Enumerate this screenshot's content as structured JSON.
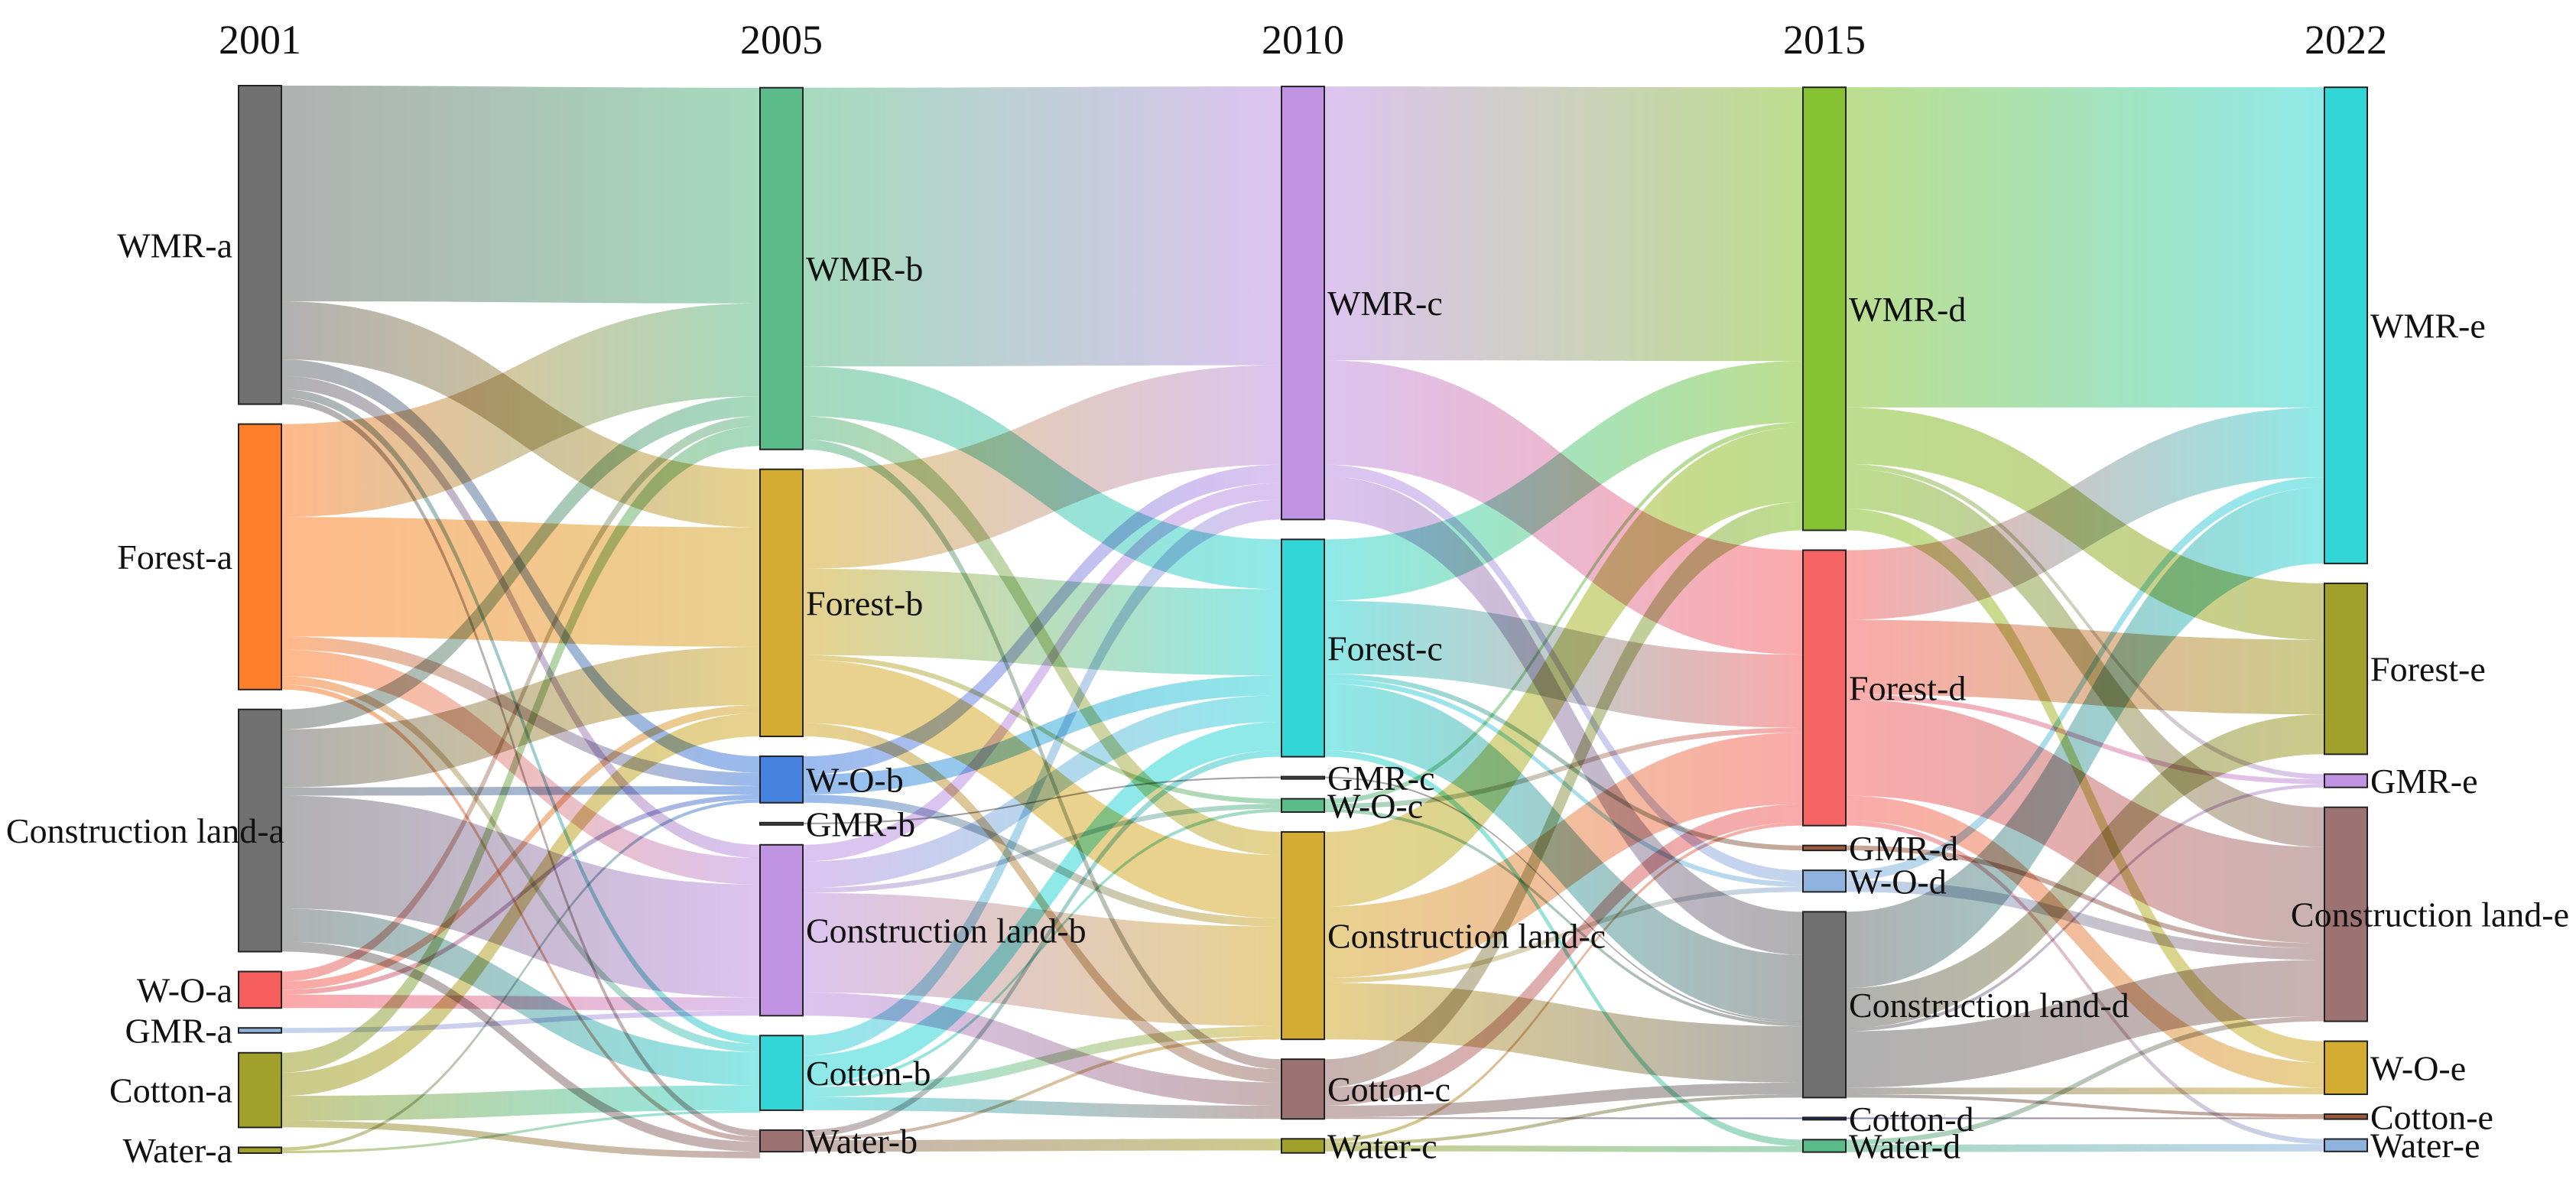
{
  "chart_data": {
    "type": "sankey",
    "title": "",
    "columns": [
      {
        "year": "2001",
        "nodes": [
          {
            "id": "WMR-a",
            "label": "WMR-a",
            "value": 19.2,
            "color": "#707070"
          },
          {
            "id": "Forest-a",
            "label": "Forest-a",
            "value": 16.0,
            "color": "#ff7f2a"
          },
          {
            "id": "Construction land-a",
            "label": "Construction land-a",
            "value": 14.6,
            "color": "#707070"
          },
          {
            "id": "W-O-a",
            "label": "W-O-a",
            "value": 2.2,
            "color": "#f75f5f"
          },
          {
            "id": "GMR-a",
            "label": "GMR-a",
            "value": 0.3,
            "color": "#8fb2de"
          },
          {
            "id": "Cotton-a",
            "label": "Cotton-a",
            "value": 4.5,
            "color": "#a0a02a"
          },
          {
            "id": "Water-a",
            "label": "Water-a",
            "value": 0.35,
            "color": "#a0a02a"
          }
        ]
      },
      {
        "year": "2005",
        "nodes": [
          {
            "id": "WMR-b",
            "label": "WMR-b",
            "value": 21.8,
            "color": "#5bbb89"
          },
          {
            "id": "Forest-b",
            "label": "Forest-b",
            "value": 16.1,
            "color": "#d4ac31"
          },
          {
            "id": "W-O-b",
            "label": "W-O-b",
            "value": 2.8,
            "color": "#4682e0"
          },
          {
            "id": "GMR-b",
            "label": "GMR-b",
            "value": 0.1,
            "color": "#555555"
          },
          {
            "id": "Construction land-b",
            "label": "Construction land-b",
            "value": 10.3,
            "color": "#c093e3"
          },
          {
            "id": "Cotton-b",
            "label": "Cotton-b",
            "value": 4.5,
            "color": "#33d6d6"
          },
          {
            "id": "Water-b",
            "label": "Water-b",
            "value": 1.3,
            "color": "#9c7272"
          }
        ]
      },
      {
        "year": "2010",
        "nodes": [
          {
            "id": "WMR-c",
            "label": "WMR-c",
            "value": 26.1,
            "color": "#c093e3"
          },
          {
            "id": "Forest-c",
            "label": "Forest-c",
            "value": 13.1,
            "color": "#33d6d6"
          },
          {
            "id": "GMR-c",
            "label": "GMR-c",
            "value": 0.1,
            "color": "#555555"
          },
          {
            "id": "W-O-c",
            "label": "W-O-c",
            "value": 0.8,
            "color": "#5bbb89"
          },
          {
            "id": "Construction land-c",
            "label": "Construction land-c",
            "value": 12.5,
            "color": "#d4ac31"
          },
          {
            "id": "Cotton-c",
            "label": "Cotton-c",
            "value": 3.6,
            "color": "#9c7272"
          },
          {
            "id": "Water-c",
            "label": "Water-c",
            "value": 0.85,
            "color": "#a0a02a"
          }
        ]
      },
      {
        "year": "2015",
        "nodes": [
          {
            "id": "WMR-d",
            "label": "WMR-d",
            "value": 26.7,
            "color": "#86c231"
          },
          {
            "id": "Forest-d",
            "label": "Forest-d",
            "value": 16.6,
            "color": "#f76464"
          },
          {
            "id": "GMR-d",
            "label": "GMR-d",
            "value": 0.3,
            "color": "#9c5a3c"
          },
          {
            "id": "W-O-d",
            "label": "W-O-d",
            "value": 1.3,
            "color": "#8fb2de"
          },
          {
            "id": "Construction land-d",
            "label": "Construction land-d",
            "value": 11.2,
            "color": "#707070"
          },
          {
            "id": "Cotton-d",
            "label": "Cotton-d",
            "value": 0.1,
            "color": "#1f2a6e"
          },
          {
            "id": "Water-d",
            "label": "Water-d",
            "value": 0.75,
            "color": "#5bbb89"
          }
        ]
      },
      {
        "year": "2022",
        "nodes": [
          {
            "id": "WMR-e",
            "label": "WMR-e",
            "value": 28.7,
            "color": "#33d6d6"
          },
          {
            "id": "Forest-e",
            "label": "Forest-e",
            "value": 10.3,
            "color": "#a0a02a"
          },
          {
            "id": "GMR-e",
            "label": "GMR-e",
            "value": 0.8,
            "color": "#c093e3"
          },
          {
            "id": "Construction land-e",
            "label": "Construction land-e",
            "value": 12.9,
            "color": "#9c7272"
          },
          {
            "id": "W-O-e",
            "label": "W-O-e",
            "value": 3.2,
            "color": "#d4ac31"
          },
          {
            "id": "Cotton-e",
            "label": "Cotton-e",
            "value": 0.3,
            "color": "#9c5a3c"
          },
          {
            "id": "Water-e",
            "label": "Water-e",
            "value": 0.75,
            "color": "#8fb2de"
          }
        ]
      }
    ],
    "links": [
      {
        "source": "WMR-a",
        "target": "WMR-b",
        "value": 13.0
      },
      {
        "source": "WMR-a",
        "target": "Forest-b",
        "value": 3.5
      },
      {
        "source": "WMR-a",
        "target": "W-O-b",
        "value": 1.0
      },
      {
        "source": "WMR-a",
        "target": "Construction land-b",
        "value": 0.8
      },
      {
        "source": "WMR-a",
        "target": "Cotton-b",
        "value": 0.5
      },
      {
        "source": "WMR-a",
        "target": "Water-b",
        "value": 0.4
      },
      {
        "source": "Forest-a",
        "target": "WMR-b",
        "value": 5.6
      },
      {
        "source": "Forest-a",
        "target": "Forest-b",
        "value": 7.2
      },
      {
        "source": "Forest-a",
        "target": "W-O-b",
        "value": 0.8
      },
      {
        "source": "Forest-a",
        "target": "Construction land-b",
        "value": 1.6
      },
      {
        "source": "Forest-a",
        "target": "Cotton-b",
        "value": 0.5
      },
      {
        "source": "Forest-a",
        "target": "Water-b",
        "value": 0.3
      },
      {
        "source": "Construction land-a",
        "target": "WMR-b",
        "value": 1.2
      },
      {
        "source": "Construction land-a",
        "target": "Forest-b",
        "value": 3.5
      },
      {
        "source": "Construction land-a",
        "target": "W-O-b",
        "value": 0.5
      },
      {
        "source": "Construction land-a",
        "target": "Construction land-b",
        "value": 6.8
      },
      {
        "source": "Construction land-a",
        "target": "Cotton-b",
        "value": 2.0
      },
      {
        "source": "Construction land-a",
        "target": "Water-b",
        "value": 0.6
      },
      {
        "source": "W-O-a",
        "target": "WMR-b",
        "value": 0.6
      },
      {
        "source": "W-O-a",
        "target": "Forest-b",
        "value": 0.5
      },
      {
        "source": "W-O-a",
        "target": "W-O-b",
        "value": 0.3
      },
      {
        "source": "W-O-a",
        "target": "Construction land-b",
        "value": 0.8
      },
      {
        "source": "GMR-a",
        "target": "Construction land-b",
        "value": 0.3
      },
      {
        "source": "Cotton-a",
        "target": "WMR-b",
        "value": 1.2
      },
      {
        "source": "Cotton-a",
        "target": "Forest-b",
        "value": 1.4
      },
      {
        "source": "Cotton-a",
        "target": "Cotton-b",
        "value": 1.5
      },
      {
        "source": "Cotton-a",
        "target": "Water-b",
        "value": 0.4
      },
      {
        "source": "Water-a",
        "target": "W-O-b",
        "value": 0.2
      },
      {
        "source": "Water-a",
        "target": "Cotton-b",
        "value": 0.15
      },
      {
        "source": "WMR-b",
        "target": "WMR-c",
        "value": 16.8
      },
      {
        "source": "WMR-b",
        "target": "Forest-c",
        "value": 3.0
      },
      {
        "source": "WMR-b",
        "target": "Construction land-c",
        "value": 1.4
      },
      {
        "source": "WMR-b",
        "target": "Cotton-c",
        "value": 0.6
      },
      {
        "source": "Forest-b",
        "target": "WMR-c",
        "value": 6.0
      },
      {
        "source": "Forest-b",
        "target": "Forest-c",
        "value": 5.2
      },
      {
        "source": "Forest-b",
        "target": "W-O-c",
        "value": 0.3
      },
      {
        "source": "Forest-b",
        "target": "Construction land-c",
        "value": 3.8
      },
      {
        "source": "Forest-b",
        "target": "Cotton-c",
        "value": 0.8
      },
      {
        "source": "W-O-b",
        "target": "WMR-c",
        "value": 1.1
      },
      {
        "source": "W-O-b",
        "target": "Forest-c",
        "value": 1.2
      },
      {
        "source": "W-O-b",
        "target": "Construction land-c",
        "value": 0.5
      },
      {
        "source": "GMR-b",
        "target": "GMR-c",
        "value": 0.1
      },
      {
        "source": "Construction land-b",
        "target": "WMR-c",
        "value": 1.0
      },
      {
        "source": "Construction land-b",
        "target": "Forest-c",
        "value": 1.6
      },
      {
        "source": "Construction land-b",
        "target": "W-O-c",
        "value": 0.3
      },
      {
        "source": "Construction land-b",
        "target": "Construction land-c",
        "value": 6.0
      },
      {
        "source": "Construction land-b",
        "target": "Cotton-c",
        "value": 1.4
      },
      {
        "source": "Cotton-b",
        "target": "WMR-c",
        "value": 1.2
      },
      {
        "source": "Cotton-b",
        "target": "Forest-c",
        "value": 1.7
      },
      {
        "source": "Cotton-b",
        "target": "W-O-c",
        "value": 0.2
      },
      {
        "source": "Cotton-b",
        "target": "Construction land-c",
        "value": 0.6
      },
      {
        "source": "Cotton-b",
        "target": "Cotton-c",
        "value": 0.8
      },
      {
        "source": "Water-b",
        "target": "Forest-c",
        "value": 0.4
      },
      {
        "source": "Water-b",
        "target": "Construction land-c",
        "value": 0.2
      },
      {
        "source": "Water-b",
        "target": "Water-c",
        "value": 0.7
      },
      {
        "source": "WMR-c",
        "target": "WMR-d",
        "value": 16.5
      },
      {
        "source": "WMR-c",
        "target": "Forest-d",
        "value": 6.3
      },
      {
        "source": "WMR-c",
        "target": "W-O-d",
        "value": 0.7
      },
      {
        "source": "WMR-c",
        "target": "Construction land-d",
        "value": 2.6
      },
      {
        "source": "Forest-c",
        "target": "WMR-d",
        "value": 3.7
      },
      {
        "source": "Forest-c",
        "target": "Forest-d",
        "value": 4.4
      },
      {
        "source": "Forest-c",
        "target": "GMR-d",
        "value": 0.3
      },
      {
        "source": "Forest-c",
        "target": "W-O-d",
        "value": 0.3
      },
      {
        "source": "Forest-c",
        "target": "Construction land-d",
        "value": 4.0
      },
      {
        "source": "Forest-c",
        "target": "Water-d",
        "value": 0.4
      },
      {
        "source": "GMR-c",
        "target": "Construction land-d",
        "value": 0.1
      },
      {
        "source": "W-O-c",
        "target": "WMR-d",
        "value": 0.3
      },
      {
        "source": "W-O-c",
        "target": "Forest-d",
        "value": 0.3
      },
      {
        "source": "W-O-c",
        "target": "Construction land-d",
        "value": 0.2
      },
      {
        "source": "Construction land-c",
        "target": "WMR-d",
        "value": 4.5
      },
      {
        "source": "Construction land-c",
        "target": "Forest-d",
        "value": 4.3
      },
      {
        "source": "Construction land-c",
        "target": "W-O-d",
        "value": 0.3
      },
      {
        "source": "Construction land-c",
        "target": "Construction land-d",
        "value": 3.4
      },
      {
        "source": "Cotton-c",
        "target": "WMR-d",
        "value": 1.7
      },
      {
        "source": "Cotton-c",
        "target": "Forest-d",
        "value": 1.1
      },
      {
        "source": "Cotton-c",
        "target": "Construction land-d",
        "value": 0.7
      },
      {
        "source": "Cotton-c",
        "target": "Cotton-d",
        "value": 0.1
      },
      {
        "source": "Water-c",
        "target": "Forest-d",
        "value": 0.2
      },
      {
        "source": "Water-c",
        "target": "Construction land-d",
        "value": 0.2
      },
      {
        "source": "Water-c",
        "target": "Water-d",
        "value": 0.35
      },
      {
        "source": "WMR-d",
        "target": "WMR-e",
        "value": 19.3
      },
      {
        "source": "WMR-d",
        "target": "Forest-e",
        "value": 3.4
      },
      {
        "source": "WMR-d",
        "target": "GMR-e",
        "value": 0.3
      },
      {
        "source": "WMR-d",
        "target": "Construction land-e",
        "value": 2.4
      },
      {
        "source": "WMR-d",
        "target": "W-O-e",
        "value": 1.3
      },
      {
        "source": "Forest-d",
        "target": "WMR-e",
        "value": 4.2
      },
      {
        "source": "Forest-d",
        "target": "Forest-e",
        "value": 4.5
      },
      {
        "source": "Forest-d",
        "target": "GMR-e",
        "value": 0.3
      },
      {
        "source": "Forest-d",
        "target": "Construction land-e",
        "value": 5.8
      },
      {
        "source": "Forest-d",
        "target": "W-O-e",
        "value": 1.5
      },
      {
        "source": "Forest-d",
        "target": "Water-e",
        "value": 0.3
      },
      {
        "source": "GMR-d",
        "target": "Construction land-e",
        "value": 0.3
      },
      {
        "source": "W-O-d",
        "target": "WMR-e",
        "value": 0.6
      },
      {
        "source": "W-O-d",
        "target": "Construction land-e",
        "value": 0.7
      },
      {
        "source": "Construction land-d",
        "target": "WMR-e",
        "value": 4.6
      },
      {
        "source": "Construction land-d",
        "target": "Forest-e",
        "value": 2.4
      },
      {
        "source": "Construction land-d",
        "target": "GMR-e",
        "value": 0.2
      },
      {
        "source": "Construction land-d",
        "target": "Construction land-e",
        "value": 3.4
      },
      {
        "source": "Construction land-d",
        "target": "W-O-e",
        "value": 0.4
      },
      {
        "source": "Construction land-d",
        "target": "Cotton-e",
        "value": 0.2
      },
      {
        "source": "Cotton-d",
        "target": "Cotton-e",
        "value": 0.1
      },
      {
        "source": "Water-d",
        "target": "Construction land-e",
        "value": 0.3
      },
      {
        "source": "Water-d",
        "target": "Water-e",
        "value": 0.45
      }
    ]
  }
}
